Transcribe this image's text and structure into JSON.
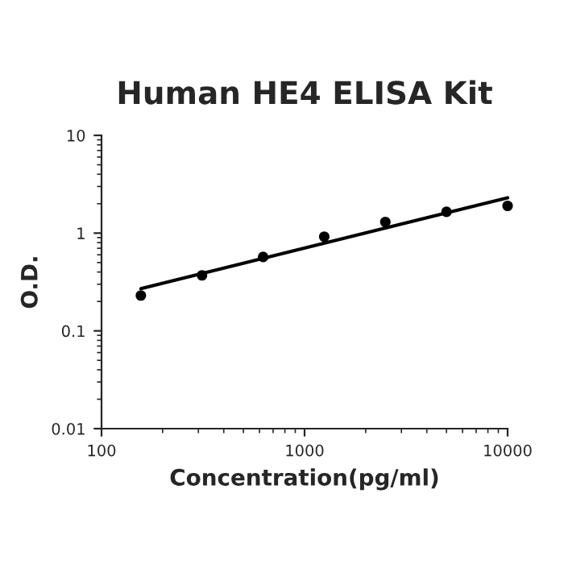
{
  "chart_data": {
    "type": "scatter",
    "title": "Human HE4 ELISA Kit",
    "xlabel": "Concentration(pg/ml)",
    "ylabel": "O.D.",
    "log": "xy",
    "x": [
      156.25,
      312.5,
      625,
      1250,
      2500,
      5000,
      10000
    ],
    "series": [
      {
        "color": "#000000",
        "marker": "circle",
        "values": [
          0.23,
          0.37,
          0.57,
          0.92,
          1.3,
          1.65,
          1.9
        ]
      },
      {
        "type": "line",
        "color": "#000000",
        "marker": "none",
        "x": [
          156.25,
          10000
        ],
        "values": [
          0.27,
          2.3
        ]
      }
    ],
    "xlim": [
      100,
      10000
    ],
    "ylim": [
      0.01,
      10
    ],
    "xticks": [
      100,
      1000,
      10000
    ],
    "yticks": [
      0.01,
      0.1,
      1,
      10
    ],
    "grid": false
  }
}
